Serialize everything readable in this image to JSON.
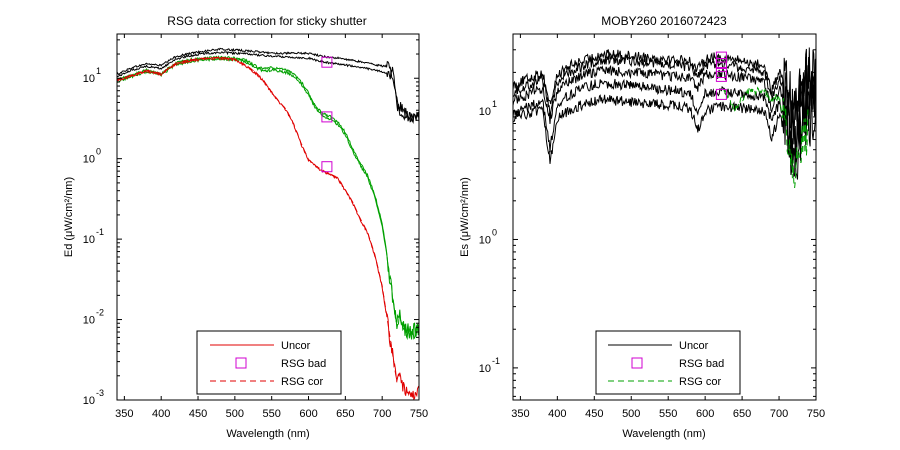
{
  "figure": {
    "background": "#ffffff"
  },
  "chart_data": [
    {
      "type": "line",
      "title": "RSG data correction for sticky shutter",
      "xlabel": "Wavelength (nm)",
      "ylabel": "Ed (μW/cm²/nm)",
      "xlim": [
        340,
        750
      ],
      "xticks": [
        350,
        400,
        450,
        500,
        550,
        600,
        650,
        700,
        750
      ],
      "xtick_labels": [
        "350",
        "400",
        "450",
        "500",
        "550",
        "600",
        "650",
        "700",
        "750"
      ],
      "y_scale": "log",
      "ylim_log10": [
        -3,
        1.55
      ],
      "yticks_log10": [
        1,
        0,
        -1,
        -2,
        -3
      ],
      "ytick_bases": [
        "10",
        "10",
        "10",
        "10",
        "10"
      ],
      "ytick_exponents": [
        "1",
        "0",
        "-1",
        "-2",
        "-3"
      ],
      "legend": {
        "position": "bottom-center",
        "entries": [
          {
            "label": "Uncor",
            "style": "solid",
            "color": "#e00000"
          },
          {
            "label": "RSG bad",
            "style": "square",
            "color": "#d000d0"
          },
          {
            "label": "RSG cor",
            "style": "dashed",
            "color": "#e00000"
          }
        ]
      },
      "series": [
        {
          "name": "Uncor (upper)",
          "style": "solid",
          "color": "#000000",
          "noise": 0.012,
          "x": [
            340,
            360,
            380,
            400,
            420,
            440,
            460,
            480,
            500,
            520,
            540,
            560,
            580,
            600,
            620,
            640,
            660,
            680,
            700,
            710,
            715,
            720,
            730,
            740,
            750
          ],
          "y_log10": [
            1.05,
            1.13,
            1.18,
            1.16,
            1.27,
            1.31,
            1.34,
            1.36,
            1.35,
            1.34,
            1.32,
            1.31,
            1.31,
            1.31,
            1.27,
            1.25,
            1.22,
            1.19,
            1.15,
            1.15,
            1.13,
            0.7,
            0.58,
            0.52,
            0.52
          ]
        },
        {
          "name": "Uncor (lower)",
          "style": "solid",
          "color": "#000000",
          "noise": 0.012,
          "x": [
            340,
            360,
            380,
            400,
            420,
            440,
            460,
            480,
            500,
            520,
            540,
            560,
            580,
            600,
            620,
            640,
            660,
            680,
            700,
            710,
            715,
            720,
            730,
            740,
            750
          ],
          "y_log10": [
            1.02,
            1.1,
            1.15,
            1.12,
            1.24,
            1.28,
            1.31,
            1.32,
            1.31,
            1.3,
            1.28,
            1.27,
            1.26,
            1.25,
            1.2,
            1.18,
            1.15,
            1.12,
            1.08,
            1.06,
            1.0,
            0.65,
            0.55,
            0.5,
            0.5
          ]
        },
        {
          "name": "Green (upper)",
          "style": "solid",
          "color": "#00a000",
          "noise": 0.015,
          "x": [
            340,
            360,
            380,
            400,
            420,
            440,
            460,
            480,
            500,
            510,
            520,
            530,
            540,
            550,
            560,
            570,
            580,
            590,
            600,
            610,
            620,
            630,
            640,
            650,
            660,
            670,
            680,
            690,
            700,
            705,
            710,
            715,
            720,
            725,
            730,
            740,
            750
          ],
          "y_log10": [
            0.98,
            1.04,
            1.1,
            1.06,
            1.19,
            1.23,
            1.25,
            1.26,
            1.25,
            1.24,
            1.2,
            1.14,
            1.12,
            1.13,
            1.12,
            1.1,
            1.05,
            0.96,
            0.82,
            0.65,
            0.56,
            0.52,
            0.45,
            0.33,
            0.12,
            -0.05,
            -0.2,
            -0.45,
            -0.8,
            -1.1,
            -1.45,
            -1.75,
            -2.0,
            -1.95,
            -2.1,
            -2.15,
            -2.1
          ]
        },
        {
          "name": "Green (lower)",
          "style": "solid",
          "color": "#00a000",
          "noise": 0.015,
          "x": [
            340,
            360,
            380,
            400,
            420,
            440,
            460,
            480,
            500,
            510,
            520,
            530,
            540,
            550,
            560,
            570,
            580,
            590,
            600,
            610,
            620,
            630,
            640,
            650,
            660,
            670,
            680,
            690,
            700,
            705,
            710,
            715,
            720,
            725,
            730,
            740,
            750
          ],
          "y_log10": [
            0.96,
            1.02,
            1.08,
            1.04,
            1.17,
            1.21,
            1.23,
            1.24,
            1.23,
            1.22,
            1.18,
            1.12,
            1.09,
            1.1,
            1.09,
            1.07,
            1.02,
            0.93,
            0.79,
            0.62,
            0.53,
            0.49,
            0.42,
            0.3,
            0.09,
            -0.08,
            -0.23,
            -0.48,
            -0.83,
            -1.13,
            -1.48,
            -1.78,
            -2.03,
            -1.98,
            -2.12,
            -2.18,
            -2.12
          ]
        },
        {
          "name": "Uncor",
          "style": "solid",
          "color": "#e00000",
          "noise": 0.015,
          "x": [
            340,
            360,
            380,
            400,
            420,
            440,
            460,
            480,
            500,
            510,
            520,
            530,
            540,
            550,
            560,
            570,
            580,
            590,
            600,
            610,
            620,
            630,
            640,
            650,
            660,
            670,
            680,
            690,
            700,
            705,
            710,
            715,
            720,
            725,
            730,
            740,
            750
          ],
          "y_log10": [
            0.97,
            1.03,
            1.09,
            1.05,
            1.18,
            1.22,
            1.24,
            1.25,
            1.23,
            1.18,
            1.12,
            1.05,
            0.95,
            0.82,
            0.7,
            0.6,
            0.42,
            0.18,
            -0.02,
            -0.1,
            -0.16,
            -0.2,
            -0.25,
            -0.4,
            -0.55,
            -0.75,
            -0.92,
            -1.2,
            -1.6,
            -1.9,
            -2.2,
            -2.5,
            -2.8,
            -2.7,
            -2.9,
            -2.95,
            -2.9
          ]
        },
        {
          "name": "RSG cor",
          "style": "dashed",
          "color": "#e00000",
          "noise": 0.0,
          "x": [
            340,
            360,
            380,
            400,
            420,
            440,
            460,
            480,
            500,
            510,
            520,
            530,
            540,
            550,
            560,
            570,
            580,
            590,
            600,
            610,
            620,
            630,
            640,
            650,
            660,
            670,
            680,
            690,
            700,
            705,
            710,
            715,
            720
          ],
          "y_log10": [
            0.98,
            1.04,
            1.1,
            1.06,
            1.19,
            1.23,
            1.25,
            1.26,
            1.24,
            1.19,
            1.13,
            1.06,
            0.96,
            0.83,
            0.71,
            0.61,
            0.43,
            0.19,
            -0.01,
            -0.09,
            -0.15,
            -0.19,
            -0.24,
            -0.39,
            -0.54,
            -0.74,
            -0.91,
            -1.19,
            -1.58,
            -1.88,
            -2.18,
            -2.48,
            -2.78
          ]
        }
      ],
      "markers": [
        {
          "name": "RSG bad",
          "x": 625,
          "y_log10": 1.2,
          "color": "#d000d0"
        },
        {
          "name": "RSG bad",
          "x": 625,
          "y_log10": 0.52,
          "color": "#d000d0"
        },
        {
          "name": "RSG bad",
          "x": 625,
          "y_log10": -0.1,
          "color": "#d000d0"
        }
      ]
    },
    {
      "type": "line",
      "title": "MOBY260  2016072423",
      "xlabel": "Wavelength (nm)",
      "ylabel": "Es (μW/cm²/nm)",
      "xlim": [
        340,
        750
      ],
      "xticks": [
        350,
        400,
        450,
        500,
        550,
        600,
        650,
        700,
        750
      ],
      "xtick_labels": [
        "350",
        "400",
        "450",
        "500",
        "550",
        "600",
        "650",
        "700",
        "750"
      ],
      "y_scale": "log",
      "ylim_log10": [
        -1.25,
        1.6
      ],
      "yticks_log10": [
        1,
        0,
        -1
      ],
      "ytick_bases": [
        "10",
        "10",
        "10"
      ],
      "ytick_exponents": [
        "1",
        "0",
        "-1"
      ],
      "legend": {
        "position": "bottom-center",
        "entries": [
          {
            "label": "Uncor",
            "style": "solid",
            "color": "#000000"
          },
          {
            "label": "RSG bad",
            "style": "square",
            "color": "#d000d0"
          },
          {
            "label": "RSG cor",
            "style": "dashed",
            "color": "#00a000"
          }
        ]
      },
      "series": [
        {
          "name": "Uncor 1",
          "style": "solid",
          "color": "#000000",
          "noise": 0.04,
          "x": [
            340,
            360,
            380,
            390,
            400,
            420,
            440,
            460,
            480,
            500,
            520,
            540,
            560,
            580,
            590,
            600,
            620,
            640,
            660,
            680,
            690,
            700,
            710,
            720,
            730,
            740,
            750
          ],
          "y_log10": [
            1.2,
            1.25,
            1.3,
            1.05,
            1.28,
            1.36,
            1.4,
            1.44,
            1.44,
            1.43,
            1.42,
            1.41,
            1.4,
            1.39,
            1.32,
            1.41,
            1.42,
            1.4,
            1.38,
            1.35,
            1.15,
            1.3,
            1.2,
            0.95,
            1.2,
            1.3,
            1.33
          ]
        },
        {
          "name": "Uncor 2",
          "style": "solid",
          "color": "#000000",
          "noise": 0.04,
          "x": [
            340,
            360,
            380,
            390,
            400,
            420,
            440,
            460,
            480,
            500,
            520,
            540,
            560,
            580,
            590,
            600,
            620,
            640,
            660,
            680,
            690,
            700,
            710,
            720,
            730,
            740,
            750
          ],
          "y_log10": [
            1.15,
            1.2,
            1.25,
            1.0,
            1.23,
            1.31,
            1.36,
            1.4,
            1.4,
            1.39,
            1.38,
            1.37,
            1.36,
            1.34,
            1.26,
            1.36,
            1.37,
            1.35,
            1.33,
            1.3,
            1.1,
            1.25,
            1.15,
            0.9,
            1.15,
            1.25,
            1.28
          ]
        },
        {
          "name": "Uncor 3",
          "style": "solid",
          "color": "#000000",
          "noise": 0.04,
          "x": [
            340,
            360,
            380,
            390,
            400,
            420,
            440,
            460,
            480,
            500,
            520,
            540,
            560,
            580,
            590,
            600,
            620,
            640,
            660,
            680,
            690,
            700,
            710,
            720,
            730,
            740,
            750
          ],
          "y_log10": [
            1.08,
            1.13,
            1.18,
            0.93,
            1.16,
            1.24,
            1.29,
            1.32,
            1.31,
            1.3,
            1.29,
            1.28,
            1.27,
            1.26,
            1.18,
            1.28,
            1.29,
            1.27,
            1.25,
            1.22,
            1.02,
            1.17,
            1.07,
            0.82,
            1.07,
            1.17,
            1.2
          ]
        },
        {
          "name": "Uncor 4",
          "style": "solid",
          "color": "#000000",
          "noise": 0.04,
          "x": [
            340,
            360,
            380,
            390,
            400,
            420,
            440,
            460,
            480,
            500,
            520,
            540,
            560,
            580,
            590,
            600,
            620,
            640,
            660,
            680,
            690,
            700,
            710,
            720,
            730,
            740,
            750
          ],
          "y_log10": [
            0.98,
            1.03,
            1.08,
            0.7,
            1.06,
            1.14,
            1.19,
            1.22,
            1.21,
            1.2,
            1.19,
            1.17,
            1.16,
            1.14,
            0.96,
            1.13,
            1.15,
            1.14,
            1.13,
            1.11,
            0.92,
            1.06,
            0.95,
            0.66,
            0.95,
            1.05,
            1.08
          ]
        },
        {
          "name": "Uncor 5",
          "style": "solid",
          "color": "#000000",
          "noise": 0.04,
          "x": [
            340,
            360,
            380,
            390,
            400,
            420,
            440,
            460,
            480,
            500,
            520,
            540,
            560,
            580,
            590,
            600,
            620,
            640,
            660,
            680,
            690,
            700,
            710,
            720,
            730,
            740,
            750
          ],
          "y_log10": [
            0.95,
            0.98,
            1.0,
            0.6,
            0.95,
            1.02,
            1.06,
            1.09,
            1.08,
            1.07,
            1.06,
            1.05,
            1.04,
            1.02,
            0.85,
            1.0,
            1.04,
            1.03,
            1.02,
            1.0,
            0.8,
            0.95,
            0.85,
            0.55,
            0.85,
            0.95,
            0.98
          ]
        },
        {
          "name": "RSG cor",
          "style": "dashed",
          "color": "#00a000",
          "noise": 0.03,
          "x": [
            625,
            630,
            640,
            650,
            660,
            670,
            680,
            690,
            700,
            705,
            710,
            715,
            720,
            725,
            730,
            740
          ],
          "y_log10": [
            1.18,
            1.1,
            1.03,
            1.1,
            1.16,
            1.16,
            1.15,
            1.08,
            1.12,
            0.95,
            0.85,
            0.55,
            0.45,
            0.6,
            0.75,
            0.85
          ]
        }
      ],
      "markers": [
        {
          "name": "RSG bad",
          "x": 622,
          "y_log10": 1.42,
          "color": "#d000d0"
        },
        {
          "name": "RSG bad",
          "x": 622,
          "y_log10": 1.37,
          "color": "#d000d0"
        },
        {
          "name": "RSG bad",
          "x": 622,
          "y_log10": 1.3,
          "color": "#d000d0"
        },
        {
          "name": "RSG bad",
          "x": 622,
          "y_log10": 1.27,
          "color": "#d000d0"
        },
        {
          "name": "RSG bad",
          "x": 622,
          "y_log10": 1.13,
          "color": "#d000d0"
        }
      ]
    }
  ]
}
